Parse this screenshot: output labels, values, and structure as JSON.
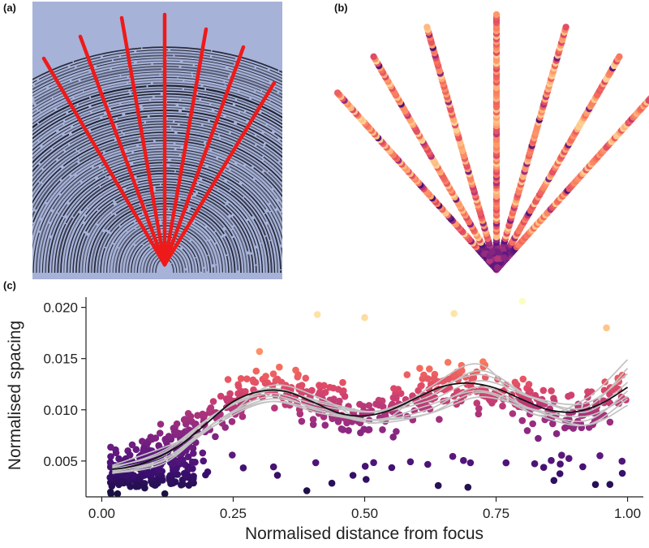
{
  "panels": {
    "a": {
      "label": "(a)"
    },
    "b": {
      "label": "(b)"
    },
    "c": {
      "label": "(c)"
    }
  },
  "colors": {
    "background": "#ffffff",
    "scan_paper": "#a7b2d8",
    "ridge_ink": "#1b1e2a",
    "ray_red": "#ee1a1a",
    "mean_line": "#111111",
    "bootstrap_lines": "#c2c2c2",
    "palette": [
      "#1a1042",
      "#3b0f70",
      "#641a80",
      "#8c2981",
      "#b5367a",
      "#de4968",
      "#f66e5c",
      "#fe9f6d",
      "#fecf92",
      "#fcfdbf"
    ]
  },
  "panel_b": {
    "ray_angles_deg": [
      -42,
      -30,
      -16,
      0,
      16,
      30,
      42
    ],
    "colormap": "magma"
  },
  "chart_data": {
    "type": "scatter",
    "panel": "(c)",
    "xlabel": "Normalised distance from focus",
    "ylabel": "Normalised spacing",
    "xlim": [
      -0.03,
      1.03
    ],
    "ylim": [
      0.0015,
      0.021
    ],
    "xticks": [
      0.0,
      0.25,
      0.5,
      0.75,
      1.0
    ],
    "xtick_labels": [
      "0.00",
      "0.25",
      "0.50",
      "0.75",
      "1.00"
    ],
    "yticks": [
      0.005,
      0.01,
      0.015,
      0.02
    ],
    "ytick_labels": [
      "0.005",
      "0.010",
      "0.015",
      "0.020"
    ],
    "mean_curve": {
      "x": [
        0.02,
        0.05,
        0.1,
        0.15,
        0.2,
        0.25,
        0.3,
        0.35,
        0.4,
        0.45,
        0.5,
        0.55,
        0.6,
        0.65,
        0.7,
        0.75,
        0.8,
        0.85,
        0.9,
        0.95,
        1.0
      ],
      "y": [
        0.0042,
        0.0044,
        0.0052,
        0.0066,
        0.0087,
        0.0108,
        0.0118,
        0.0118,
        0.0108,
        0.0097,
        0.0094,
        0.01,
        0.0112,
        0.0123,
        0.0126,
        0.0121,
        0.011,
        0.01,
        0.0098,
        0.0106,
        0.0122
      ]
    },
    "bootstrap_fits": {
      "count": 8,
      "x": [
        0.02,
        0.12,
        0.22,
        0.32,
        0.42,
        0.52,
        0.62,
        0.72,
        0.82,
        0.92,
        1.0
      ],
      "y_min": [
        0.0038,
        0.0046,
        0.0084,
        0.0108,
        0.0094,
        0.0085,
        0.0096,
        0.0108,
        0.0093,
        0.0085,
        0.0098
      ],
      "y_max": [
        0.0047,
        0.0064,
        0.0103,
        0.0126,
        0.0111,
        0.0104,
        0.0125,
        0.0145,
        0.012,
        0.0115,
        0.015
      ]
    },
    "scatter": {
      "n_points": 760,
      "color_by": "normalised spacing",
      "colormap": "magma",
      "sample_points": [
        {
          "x": 0.8,
          "y": 0.0206
        },
        {
          "x": 0.67,
          "y": 0.0194
        },
        {
          "x": 0.5,
          "y": 0.019
        },
        {
          "x": 0.41,
          "y": 0.0193
        },
        {
          "x": 0.96,
          "y": 0.018
        },
        {
          "x": 0.03,
          "y": 0.0018
        },
        {
          "x": 0.12,
          "y": 0.0018
        },
        {
          "x": 0.39,
          "y": 0.0021
        },
        {
          "x": 0.99,
          "y": 0.0038
        },
        {
          "x": 0.64,
          "y": 0.0026
        },
        {
          "x": 0.3,
          "y": 0.0157
        },
        {
          "x": 0.86,
          "y": 0.0031
        }
      ]
    }
  }
}
